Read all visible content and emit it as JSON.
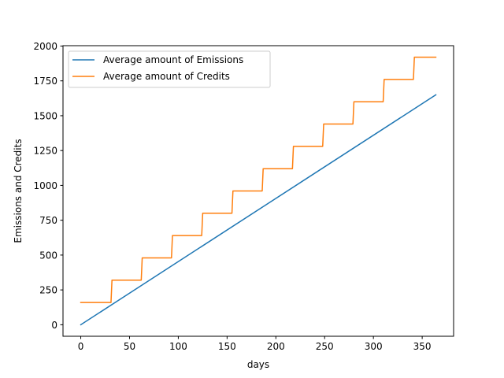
{
  "chart_data": {
    "type": "line",
    "title": "",
    "xlabel": "days",
    "ylabel": "Emissions and Credits",
    "xlim": [
      -18.2,
      382.2
    ],
    "ylim": [
      -82.6,
      2002.6
    ],
    "grid": false,
    "legend_position": "upper-left",
    "x_ticks": [
      0,
      50,
      100,
      150,
      200,
      250,
      300,
      350
    ],
    "y_ticks": [
      0,
      250,
      500,
      750,
      1000,
      1250,
      1500,
      1750,
      2000
    ],
    "series": [
      {
        "name": "Average amount of Emissions",
        "color": "#1f77b4",
        "x": [
          0,
          364
        ],
        "y": [
          0,
          1650
        ]
      },
      {
        "name": "Average amount of Credits",
        "color": "#ff7f0e",
        "x": [
          0,
          31,
          32,
          62,
          63,
          93,
          94,
          124,
          125,
          155,
          156,
          186,
          187,
          217,
          218,
          248,
          249,
          279,
          280,
          310,
          311,
          341,
          342,
          364
        ],
        "y": [
          160,
          160,
          320,
          320,
          480,
          480,
          640,
          640,
          800,
          800,
          960,
          960,
          1120,
          1120,
          1280,
          1280,
          1440,
          1440,
          1600,
          1600,
          1760,
          1760,
          1920,
          1920
        ]
      }
    ]
  }
}
